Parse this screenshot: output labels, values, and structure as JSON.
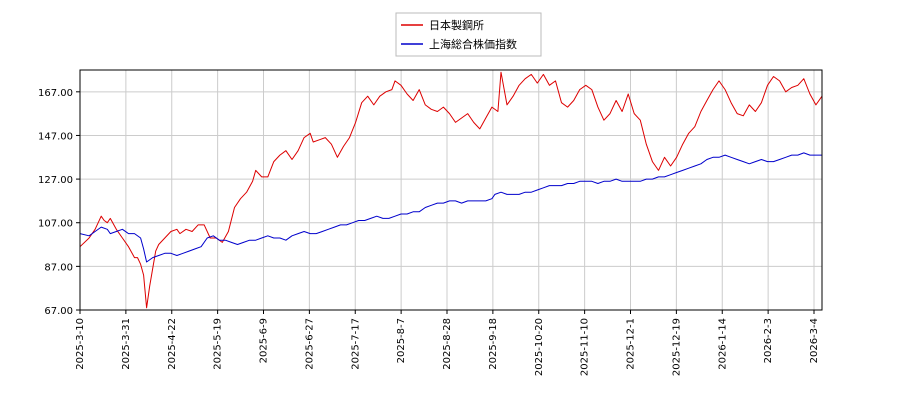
{
  "chart_data": {
    "type": "line",
    "ylim": [
      67.0,
      177.0
    ],
    "y_ticks": [
      "67.00",
      "87.00",
      "107.00",
      "127.00",
      "147.00",
      "167.00"
    ],
    "x_ticks": [
      "2025-3-10",
      "2025-3-31",
      "2025-4-22",
      "2025-5-19",
      "2025-6-9",
      "2025-6-27",
      "2025-7-17",
      "2025-8-7",
      "2025-8-28",
      "2025-9-18",
      "2025-10-20",
      "2025-11-10",
      "2025-12-1",
      "2025-12-19",
      "2026-1-14",
      "2026-2-3",
      "2026-3-4"
    ],
    "grid": true,
    "legend_placement": "top-center",
    "series": [
      {
        "name": "日本製鋼所",
        "color": "#dd0000",
        "points": [
          [
            0,
            96
          ],
          [
            3,
            100
          ],
          [
            5,
            104
          ],
          [
            7,
            110
          ],
          [
            8,
            108
          ],
          [
            9,
            107
          ],
          [
            10,
            109
          ],
          [
            12,
            104
          ],
          [
            14,
            100
          ],
          [
            16,
            96
          ],
          [
            18,
            91
          ],
          [
            19,
            91
          ],
          [
            20,
            88
          ],
          [
            21,
            83
          ],
          [
            22,
            68
          ],
          [
            23,
            78
          ],
          [
            24,
            86
          ],
          [
            25,
            94
          ],
          [
            26,
            97
          ],
          [
            28,
            100
          ],
          [
            30,
            103
          ],
          [
            32,
            104
          ],
          [
            33,
            102
          ],
          [
            35,
            104
          ],
          [
            37,
            103
          ],
          [
            39,
            106
          ],
          [
            41,
            106
          ],
          [
            43,
            100
          ],
          [
            45,
            100
          ],
          [
            47,
            98
          ],
          [
            49,
            103
          ],
          [
            51,
            114
          ],
          [
            53,
            118
          ],
          [
            55,
            121
          ],
          [
            57,
            126
          ],
          [
            58,
            131
          ],
          [
            60,
            128
          ],
          [
            62,
            128
          ],
          [
            64,
            135
          ],
          [
            66,
            138
          ],
          [
            68,
            140
          ],
          [
            70,
            136
          ],
          [
            72,
            140
          ],
          [
            74,
            146
          ],
          [
            76,
            148
          ],
          [
            77,
            144
          ],
          [
            79,
            145
          ],
          [
            81,
            146
          ],
          [
            83,
            143
          ],
          [
            85,
            137
          ],
          [
            87,
            142
          ],
          [
            89,
            146
          ],
          [
            91,
            153
          ],
          [
            93,
            162
          ],
          [
            95,
            165
          ],
          [
            97,
            161
          ],
          [
            99,
            165
          ],
          [
            101,
            167
          ],
          [
            103,
            168
          ],
          [
            104,
            172
          ],
          [
            106,
            170
          ],
          [
            108,
            166
          ],
          [
            110,
            163
          ],
          [
            112,
            168
          ],
          [
            114,
            161
          ],
          [
            116,
            159
          ],
          [
            118,
            158
          ],
          [
            120,
            160
          ],
          [
            122,
            157
          ],
          [
            124,
            153
          ],
          [
            126,
            155
          ],
          [
            128,
            157
          ],
          [
            130,
            153
          ],
          [
            132,
            150
          ],
          [
            134,
            155
          ],
          [
            136,
            160
          ],
          [
            138,
            158
          ],
          [
            139,
            176
          ],
          [
            141,
            161
          ],
          [
            143,
            165
          ],
          [
            145,
            170
          ],
          [
            147,
            173
          ],
          [
            149,
            175
          ],
          [
            151,
            171
          ],
          [
            153,
            175
          ],
          [
            155,
            170
          ],
          [
            157,
            172
          ],
          [
            159,
            162
          ],
          [
            161,
            160
          ],
          [
            163,
            163
          ],
          [
            165,
            168
          ],
          [
            167,
            170
          ],
          [
            169,
            168
          ],
          [
            171,
            160
          ],
          [
            173,
            154
          ],
          [
            175,
            157
          ],
          [
            177,
            163
          ],
          [
            179,
            158
          ],
          [
            181,
            166
          ],
          [
            183,
            157
          ],
          [
            185,
            154
          ],
          [
            187,
            143
          ],
          [
            189,
            135
          ],
          [
            191,
            131
          ],
          [
            193,
            137
          ],
          [
            195,
            133
          ],
          [
            197,
            137
          ],
          [
            199,
            143
          ],
          [
            201,
            148
          ],
          [
            203,
            151
          ],
          [
            205,
            158
          ],
          [
            207,
            163
          ],
          [
            209,
            168
          ],
          [
            211,
            172
          ],
          [
            213,
            168
          ],
          [
            215,
            162
          ],
          [
            217,
            157
          ],
          [
            219,
            156
          ],
          [
            221,
            161
          ],
          [
            223,
            158
          ],
          [
            225,
            162
          ],
          [
            227,
            170
          ],
          [
            229,
            174
          ],
          [
            231,
            172
          ],
          [
            233,
            167
          ],
          [
            235,
            169
          ],
          [
            237,
            170
          ],
          [
            239,
            173
          ],
          [
            241,
            166
          ],
          [
            243,
            161
          ],
          [
            245,
            165
          ]
        ]
      },
      {
        "name": "上海総合株価指数",
        "color": "#0000cc",
        "points": [
          [
            0,
            102
          ],
          [
            3,
            101
          ],
          [
            5,
            103
          ],
          [
            7,
            105
          ],
          [
            9,
            104
          ],
          [
            10,
            102
          ],
          [
            12,
            103
          ],
          [
            14,
            104
          ],
          [
            16,
            102
          ],
          [
            18,
            102
          ],
          [
            20,
            100
          ],
          [
            21,
            95
          ],
          [
            22,
            89
          ],
          [
            24,
            91
          ],
          [
            26,
            92
          ],
          [
            28,
            93
          ],
          [
            30,
            93
          ],
          [
            32,
            92
          ],
          [
            34,
            93
          ],
          [
            36,
            94
          ],
          [
            38,
            95
          ],
          [
            40,
            96
          ],
          [
            42,
            100
          ],
          [
            44,
            101
          ],
          [
            46,
            99
          ],
          [
            48,
            99
          ],
          [
            50,
            98
          ],
          [
            52,
            97
          ],
          [
            54,
            98
          ],
          [
            56,
            99
          ],
          [
            58,
            99
          ],
          [
            60,
            100
          ],
          [
            62,
            101
          ],
          [
            64,
            100
          ],
          [
            66,
            100
          ],
          [
            68,
            99
          ],
          [
            70,
            101
          ],
          [
            72,
            102
          ],
          [
            74,
            103
          ],
          [
            76,
            102
          ],
          [
            78,
            102
          ],
          [
            80,
            103
          ],
          [
            82,
            104
          ],
          [
            84,
            105
          ],
          [
            86,
            106
          ],
          [
            88,
            106
          ],
          [
            90,
            107
          ],
          [
            92,
            108
          ],
          [
            94,
            108
          ],
          [
            96,
            109
          ],
          [
            98,
            110
          ],
          [
            100,
            109
          ],
          [
            102,
            109
          ],
          [
            104,
            110
          ],
          [
            106,
            111
          ],
          [
            108,
            111
          ],
          [
            110,
            112
          ],
          [
            112,
            112
          ],
          [
            114,
            114
          ],
          [
            116,
            115
          ],
          [
            118,
            116
          ],
          [
            120,
            116
          ],
          [
            122,
            117
          ],
          [
            124,
            117
          ],
          [
            126,
            116
          ],
          [
            128,
            117
          ],
          [
            130,
            117
          ],
          [
            132,
            117
          ],
          [
            134,
            117
          ],
          [
            136,
            118
          ],
          [
            137,
            120
          ],
          [
            139,
            121
          ],
          [
            141,
            120
          ],
          [
            143,
            120
          ],
          [
            145,
            120
          ],
          [
            147,
            121
          ],
          [
            149,
            121
          ],
          [
            151,
            122
          ],
          [
            153,
            123
          ],
          [
            155,
            124
          ],
          [
            157,
            124
          ],
          [
            159,
            124
          ],
          [
            161,
            125
          ],
          [
            163,
            125
          ],
          [
            165,
            126
          ],
          [
            167,
            126
          ],
          [
            169,
            126
          ],
          [
            171,
            125
          ],
          [
            173,
            126
          ],
          [
            175,
            126
          ],
          [
            177,
            127
          ],
          [
            179,
            126
          ],
          [
            181,
            126
          ],
          [
            183,
            126
          ],
          [
            185,
            126
          ],
          [
            187,
            127
          ],
          [
            189,
            127
          ],
          [
            191,
            128
          ],
          [
            193,
            128
          ],
          [
            195,
            129
          ],
          [
            197,
            130
          ],
          [
            199,
            131
          ],
          [
            201,
            132
          ],
          [
            203,
            133
          ],
          [
            205,
            134
          ],
          [
            207,
            136
          ],
          [
            209,
            137
          ],
          [
            211,
            137
          ],
          [
            213,
            138
          ],
          [
            215,
            137
          ],
          [
            217,
            136
          ],
          [
            219,
            135
          ],
          [
            221,
            134
          ],
          [
            223,
            135
          ],
          [
            225,
            136
          ],
          [
            227,
            135
          ],
          [
            229,
            135
          ],
          [
            231,
            136
          ],
          [
            233,
            137
          ],
          [
            235,
            138
          ],
          [
            237,
            138
          ],
          [
            239,
            139
          ],
          [
            241,
            138
          ],
          [
            243,
            138
          ],
          [
            245,
            138
          ]
        ]
      }
    ]
  }
}
